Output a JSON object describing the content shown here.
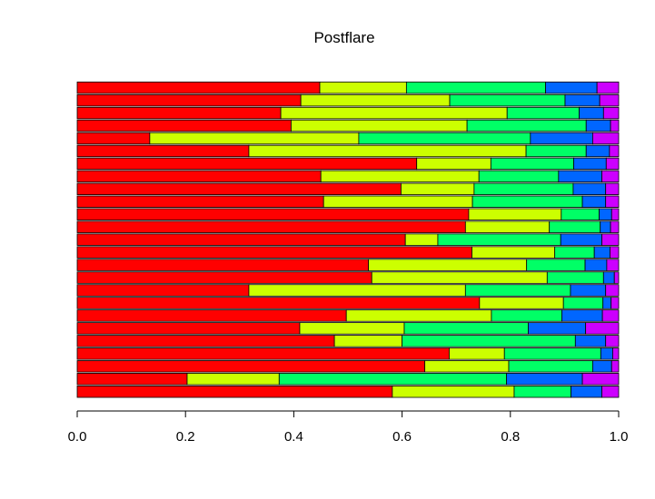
{
  "chart_data": {
    "type": "bar",
    "orientation": "horizontal",
    "stacked": true,
    "title": "Postflare",
    "xlabel": "",
    "ylabel": "",
    "xlim": [
      0,
      1
    ],
    "x_ticks": [
      "0.0",
      "0.2",
      "0.4",
      "0.6",
      "0.8",
      "1.0"
    ],
    "grid": false,
    "legend": "none",
    "colors": [
      "#ff0000",
      "#ccff00",
      "#00ff66",
      "#0066ff",
      "#cc00ff"
    ],
    "rows": [
      [
        0.582,
        0.225,
        0.105,
        0.057,
        0.031
      ],
      [
        0.203,
        0.17,
        0.42,
        0.14,
        0.067
      ],
      [
        0.642,
        0.155,
        0.155,
        0.035,
        0.013
      ],
      [
        0.687,
        0.102,
        0.178,
        0.022,
        0.011
      ],
      [
        0.475,
        0.125,
        0.32,
        0.056,
        0.024
      ],
      [
        0.411,
        0.193,
        0.229,
        0.106,
        0.061
      ],
      [
        0.497,
        0.268,
        0.13,
        0.075,
        0.03
      ],
      [
        0.743,
        0.155,
        0.073,
        0.015,
        0.014
      ],
      [
        0.317,
        0.4,
        0.194,
        0.065,
        0.024
      ],
      [
        0.544,
        0.324,
        0.104,
        0.02,
        0.008
      ],
      [
        0.538,
        0.292,
        0.108,
        0.04,
        0.022
      ],
      [
        0.729,
        0.153,
        0.073,
        0.029,
        0.016
      ],
      [
        0.606,
        0.06,
        0.227,
        0.076,
        0.031
      ],
      [
        0.717,
        0.155,
        0.094,
        0.019,
        0.015
      ],
      [
        0.723,
        0.171,
        0.07,
        0.023,
        0.013
      ],
      [
        0.455,
        0.275,
        0.203,
        0.043,
        0.024
      ],
      [
        0.598,
        0.135,
        0.183,
        0.06,
        0.024
      ],
      [
        0.45,
        0.292,
        0.147,
        0.08,
        0.031
      ],
      [
        0.627,
        0.137,
        0.153,
        0.06,
        0.023
      ],
      [
        0.317,
        0.512,
        0.111,
        0.043,
        0.017
      ],
      [
        0.134,
        0.386,
        0.317,
        0.115,
        0.048
      ],
      [
        0.395,
        0.325,
        0.22,
        0.045,
        0.015
      ],
      [
        0.376,
        0.418,
        0.133,
        0.045,
        0.028
      ],
      [
        0.413,
        0.275,
        0.213,
        0.064,
        0.035
      ],
      [
        0.448,
        0.16,
        0.257,
        0.095,
        0.04
      ]
    ]
  }
}
